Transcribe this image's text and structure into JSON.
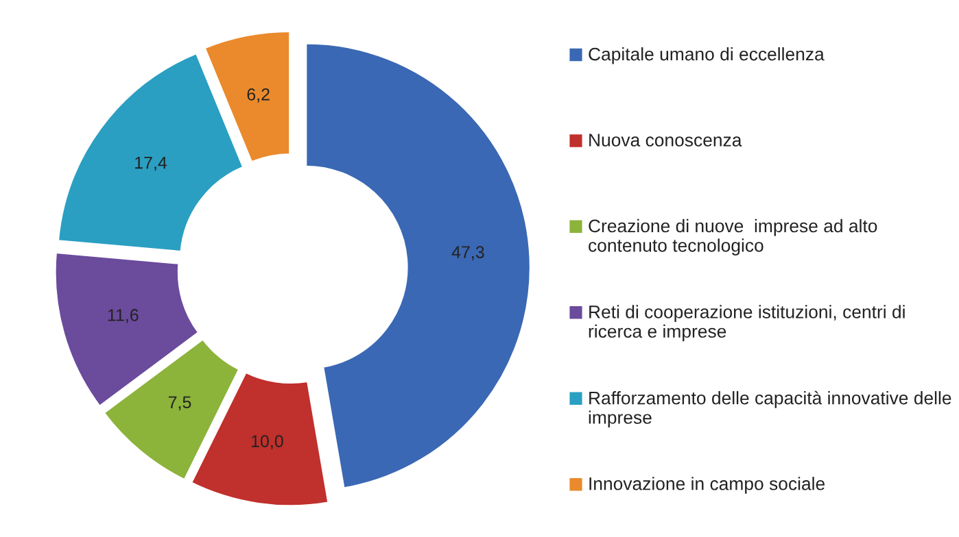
{
  "chart_data": {
    "type": "donut",
    "categories": [
      "Capitale umano di eccellenza",
      "Nuova conoscenza",
      "Creazione di nuove  imprese ad alto contenuto tecnologico",
      "Reti di cooperazione istituzioni, centri di ricerca e imprese",
      "Rafforzamento delle capacità innovative delle imprese",
      "Innovazione in campo sociale"
    ],
    "values": [
      47.3,
      10.0,
      7.5,
      11.6,
      17.4,
      6.2
    ],
    "value_labels": [
      "47,3",
      "10,0",
      "7,5",
      "11,6",
      "17,4",
      "6,2"
    ],
    "colors": [
      "#3a68b4",
      "#c0302c",
      "#8cb33a",
      "#6b4b9c",
      "#2a9fc2",
      "#ea8a2c"
    ],
    "legend": "right"
  }
}
